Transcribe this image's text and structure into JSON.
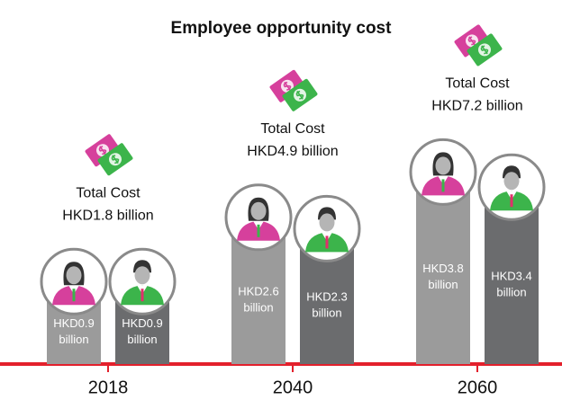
{
  "chart_data": {
    "type": "bar",
    "title": "Employee opportunity cost",
    "categories": [
      "2018",
      "2040",
      "2060"
    ],
    "series": [
      {
        "color": "#9b9b9b",
        "values": [
          0.9,
          2.6,
          3.8
        ],
        "value_labels": [
          "HKD0.9 billion",
          "HKD2.6 billion",
          "HKD3.8 billion"
        ]
      },
      {
        "color": "#6b6c6e",
        "values": [
          0.9,
          2.3,
          3.4
        ],
        "value_labels": [
          "HKD0.9 billion",
          "HKD2.3 billion",
          "HKD3.4 billion"
        ]
      }
    ],
    "total_label": "Total Cost",
    "totals": {
      "values": [
        1.8,
        4.9,
        7.2
      ],
      "value_labels": [
        "HKD1.8 billion",
        "HKD4.9 billion",
        "HKD7.2 billion"
      ]
    }
  }
}
